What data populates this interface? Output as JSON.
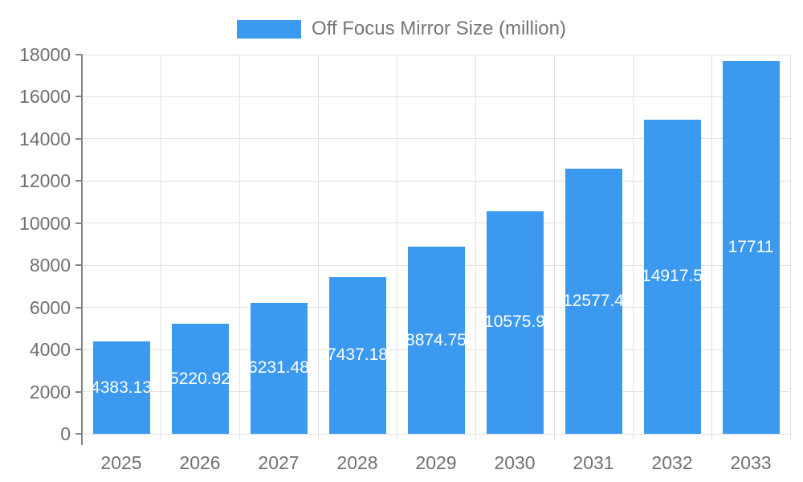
{
  "chart_data": {
    "type": "bar",
    "title": "",
    "legend": "Off Focus Mirror Size (million)",
    "legend_position": "top",
    "categories": [
      "2025",
      "2026",
      "2027",
      "2028",
      "2029",
      "2030",
      "2031",
      "2032",
      "2033"
    ],
    "series": [
      {
        "name": "Off Focus Mirror Size (million)",
        "values": [
          4383.13,
          5220.92,
          6231.48,
          7437.18,
          8874.75,
          10575.9,
          12577.4,
          14917.5,
          17711
        ],
        "labels": [
          "4383.13",
          "5220.92",
          "6231.48",
          "7437.18",
          "8874.75",
          "10575.9",
          "12577.4",
          "14917.5",
          "17711"
        ]
      }
    ],
    "xlabel": "",
    "ylabel": "",
    "ylim": [
      0,
      18000
    ],
    "yticks": [
      0,
      2000,
      4000,
      6000,
      8000,
      10000,
      12000,
      14000,
      16000,
      18000
    ],
    "grid": true,
    "colors": {
      "bar": "#3B99F0",
      "grid_line": "#E0E0E0",
      "axis_line": "#848484",
      "tick_label": "#707070",
      "legend_text": "#757575",
      "bar_label": "#FFFFFF",
      "background": "#FFFFFF"
    }
  }
}
